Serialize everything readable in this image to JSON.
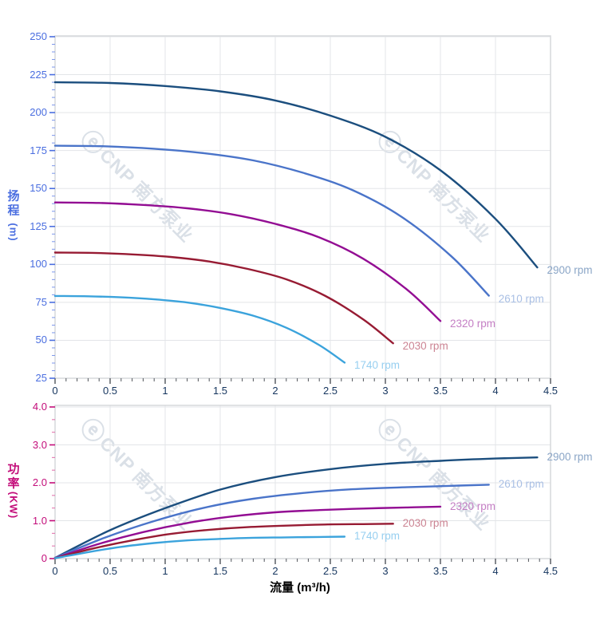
{
  "watermark": {
    "logo": "ⓔ",
    "text": "CNP 南方泵业"
  },
  "x_axis": {
    "title": "流量 (m³/h)",
    "tick_color": "#15355e",
    "tick_mark_color": "#50545a"
  },
  "chart_data": [
    {
      "type": "line",
      "name": "head-curves",
      "ylabel_chars": [
        "扬",
        "程"
      ],
      "ylabel_unit": "(m)",
      "axis_color": "#4a6ee0",
      "axis_minor_color": "#7b96ea",
      "x_range": [
        0,
        4.5
      ],
      "y_range": [
        25,
        250
      ],
      "x_tick_values": [
        0,
        0.5,
        1,
        1.5,
        2,
        2.5,
        3,
        3.5,
        4,
        4.5
      ],
      "x_tick_labels": [
        "0",
        "0.5",
        "1",
        "1.5",
        "2",
        "2.5",
        "3",
        "3.5",
        "4",
        "4.5"
      ],
      "y_tick_values": [
        25,
        50,
        75,
        100,
        125,
        150,
        175,
        200,
        225,
        250
      ],
      "y_tick_labels": [
        "25",
        "50",
        "75",
        "100",
        "125",
        "150",
        "175",
        "200",
        "225",
        "250"
      ],
      "x_minor_step": 0.1,
      "y_minor_step": 5,
      "grid": true,
      "series": [
        {
          "name": "2900 rpm",
          "color": "#1b4e7e",
          "label_color": "#8ba6c7",
          "points": [
            [
              0,
              220
            ],
            [
              0.5,
              219.5
            ],
            [
              1,
              217.5
            ],
            [
              1.5,
              214
            ],
            [
              2,
              208
            ],
            [
              2.5,
              198
            ],
            [
              3,
              184
            ],
            [
              3.5,
              162
            ],
            [
              4,
              130
            ],
            [
              4.38,
              98
            ]
          ]
        },
        {
          "name": "2610 rpm",
          "color": "#4a74c9",
          "label_color": "#a9bfe4",
          "points": [
            [
              0,
              178.2
            ],
            [
              0.45,
              177.8
            ],
            [
              0.9,
              176.2
            ],
            [
              1.35,
              173.3
            ],
            [
              1.8,
              168.5
            ],
            [
              2.25,
              160.4
            ],
            [
              2.7,
              149
            ],
            [
              3.15,
              131.2
            ],
            [
              3.6,
              105.3
            ],
            [
              3.94,
              79.4
            ]
          ]
        },
        {
          "name": "2320 rpm",
          "color": "#930d93",
          "label_color": "#c47ec4",
          "points": [
            [
              0,
              140.8
            ],
            [
              0.4,
              140.5
            ],
            [
              0.8,
              139.2
            ],
            [
              1.2,
              137
            ],
            [
              1.6,
              133.1
            ],
            [
              2,
              126.7
            ],
            [
              2.4,
              117.8
            ],
            [
              2.8,
              103.7
            ],
            [
              3.2,
              83.2
            ],
            [
              3.5,
              62.7
            ]
          ]
        },
        {
          "name": "2030 rpm",
          "color": "#971b33",
          "label_color": "#cc8493",
          "points": [
            [
              0,
              107.8
            ],
            [
              0.35,
              107.6
            ],
            [
              0.7,
              106.6
            ],
            [
              1.05,
              104.9
            ],
            [
              1.4,
              101.9
            ],
            [
              1.75,
              97
            ],
            [
              2.1,
              90.2
            ],
            [
              2.45,
              79.4
            ],
            [
              2.8,
              63.7
            ],
            [
              3.07,
              48
            ]
          ]
        },
        {
          "name": "1740 rpm",
          "color": "#3ba3dc",
          "label_color": "#97cff0",
          "points": [
            [
              0,
              79.2
            ],
            [
              0.3,
              79
            ],
            [
              0.6,
              78.3
            ],
            [
              0.9,
              77
            ],
            [
              1.2,
              74.9
            ],
            [
              1.5,
              71.3
            ],
            [
              1.8,
              66.2
            ],
            [
              2.1,
              58.3
            ],
            [
              2.4,
              46.8
            ],
            [
              2.63,
              35.3
            ]
          ]
        }
      ]
    },
    {
      "type": "line",
      "name": "power-curves",
      "ylabel_chars": [
        "功",
        "率"
      ],
      "ylabel_unit": "(KW)",
      "axis_color": "#c30d7a",
      "axis_minor_color": "#e06aa8",
      "x_range": [
        0,
        4.5
      ],
      "y_range": [
        0,
        4
      ],
      "x_tick_values": [
        0,
        0.5,
        1,
        1.5,
        2,
        2.5,
        3,
        3.5,
        4,
        4.5
      ],
      "x_tick_labels": [
        "0",
        "0.5",
        "1",
        "1.5",
        "2",
        "2.5",
        "3",
        "3.5",
        "4",
        "4.5"
      ],
      "y_tick_values": [
        0,
        1,
        2,
        3,
        4
      ],
      "y_tick_labels": [
        "0",
        "1.0",
        "2.0",
        "3.0",
        "4.0"
      ],
      "x_minor_step": 0.1,
      "y_minor_step": 0.33333,
      "grid": true,
      "series": [
        {
          "name": "2900 rpm",
          "color": "#1b4e7e",
          "label_color": "#8ba6c7",
          "points": [
            [
              0,
              0.02
            ],
            [
              0.5,
              0.75
            ],
            [
              1,
              1.33
            ],
            [
              1.5,
              1.82
            ],
            [
              2,
              2.15
            ],
            [
              2.5,
              2.36
            ],
            [
              3,
              2.5
            ],
            [
              3.5,
              2.58
            ],
            [
              4,
              2.64
            ],
            [
              4.38,
              2.67
            ]
          ]
        },
        {
          "name": "2610 rpm",
          "color": "#4a74c9",
          "label_color": "#a9bfe4",
          "points": [
            [
              0,
              0.02
            ],
            [
              0.45,
              0.55
            ],
            [
              0.9,
              0.99
            ],
            [
              1.35,
              1.34
            ],
            [
              1.8,
              1.58
            ],
            [
              2.25,
              1.73
            ],
            [
              2.7,
              1.83
            ],
            [
              3.15,
              1.88
            ],
            [
              3.6,
              1.92
            ],
            [
              3.94,
              1.95
            ]
          ]
        },
        {
          "name": "2320 rpm",
          "color": "#930d93",
          "label_color": "#c47ec4",
          "points": [
            [
              0,
              0.01
            ],
            [
              0.4,
              0.39
            ],
            [
              0.8,
              0.7
            ],
            [
              1.2,
              0.94
            ],
            [
              1.6,
              1.11
            ],
            [
              2,
              1.22
            ],
            [
              2.4,
              1.28
            ],
            [
              2.8,
              1.32
            ],
            [
              3.2,
              1.35
            ],
            [
              3.5,
              1.37
            ]
          ]
        },
        {
          "name": "2030 rpm",
          "color": "#971b33",
          "label_color": "#cc8493",
          "points": [
            [
              0,
              0.01
            ],
            [
              0.35,
              0.27
            ],
            [
              0.7,
              0.48
            ],
            [
              1.05,
              0.65
            ],
            [
              1.4,
              0.76
            ],
            [
              1.75,
              0.83
            ],
            [
              2.1,
              0.87
            ],
            [
              2.45,
              0.9
            ],
            [
              2.8,
              0.91
            ],
            [
              3.07,
              0.92
            ]
          ]
        },
        {
          "name": "1740 rpm",
          "color": "#3ba3dc",
          "label_color": "#97cff0",
          "points": [
            [
              0,
              0.01
            ],
            [
              0.3,
              0.17
            ],
            [
              0.6,
              0.31
            ],
            [
              0.9,
              0.41
            ],
            [
              1.2,
              0.48
            ],
            [
              1.5,
              0.52
            ],
            [
              1.8,
              0.55
            ],
            [
              2.1,
              0.56
            ],
            [
              2.4,
              0.57
            ],
            [
              2.63,
              0.58
            ]
          ]
        }
      ]
    }
  ],
  "style": {
    "grid_color": "#e3e5e8",
    "border_color": "#d6d8db"
  }
}
